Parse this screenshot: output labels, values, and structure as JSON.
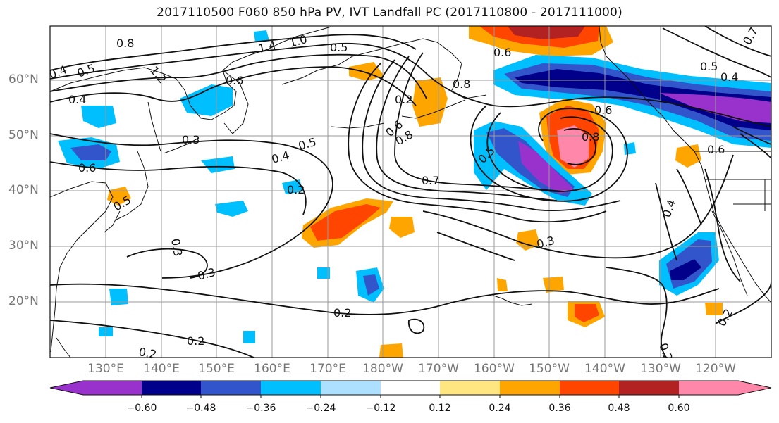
{
  "title": "2017110500 F060 850 hPa PV, IVT Landfall PC (2017110800 - 2017111000)",
  "map": {
    "projection": "cylindrical",
    "extent_lon_east": [
      120,
      250
    ],
    "extent_lat": [
      10,
      70
    ],
    "lat_ticks": [
      {
        "label": "20°N",
        "value": 20
      },
      {
        "label": "30°N",
        "value": 30
      },
      {
        "label": "40°N",
        "value": 40
      },
      {
        "label": "50°N",
        "value": 50
      },
      {
        "label": "60°N",
        "value": 60
      }
    ],
    "lon_ticks": [
      {
        "label": "130°E",
        "value": 130
      },
      {
        "label": "140°E",
        "value": 140
      },
      {
        "label": "150°E",
        "value": 150
      },
      {
        "label": "160°E",
        "value": 160
      },
      {
        "label": "170°E",
        "value": 170
      },
      {
        "label": "180°W",
        "value": 180
      },
      {
        "label": "170°W",
        "value": 190
      },
      {
        "label": "160°W",
        "value": 200
      },
      {
        "label": "150°W",
        "value": 210
      },
      {
        "label": "140°W",
        "value": 220
      },
      {
        "label": "130°W",
        "value": 230
      },
      {
        "label": "120°W",
        "value": 240
      }
    ],
    "grid": true,
    "contour_labels": [
      "0.8",
      "1.4",
      "1.0",
      "0.5",
      "0.4",
      "0.5",
      "1.2",
      "0.6",
      "0.4",
      "0.2",
      "0.6",
      "0.8",
      "0.6",
      "0.8",
      "0.3",
      "0.4",
      "0.5",
      "0.2",
      "0.6",
      "0.5",
      "0.7",
      "0.8",
      "0.5",
      "0.3",
      "0.3",
      "0.3",
      "0.2",
      "0.2",
      "0.2",
      "0.4",
      "0.6",
      "0.2",
      "0.2",
      "0.7",
      "0.4",
      "0.5",
      "0.6"
    ]
  },
  "colorbar": {
    "colors": [
      "#9932CC",
      "#00008B",
      "#3355CC",
      "#00BFFF",
      "#ADDFFF",
      "#FFFFFF",
      "#FFE680",
      "#FFA500",
      "#FF4500",
      "#B22222",
      "#FF88AA"
    ],
    "tick_labels": [
      "−0.60",
      "−0.48",
      "−0.36",
      "−0.24",
      "−0.12",
      "0.12",
      "0.24",
      "0.36",
      "0.48",
      "0.60"
    ],
    "tick_values": [
      -0.6,
      -0.48,
      -0.36,
      -0.24,
      -0.12,
      0.12,
      0.24,
      0.36,
      0.48,
      0.6
    ],
    "extend": "both"
  }
}
